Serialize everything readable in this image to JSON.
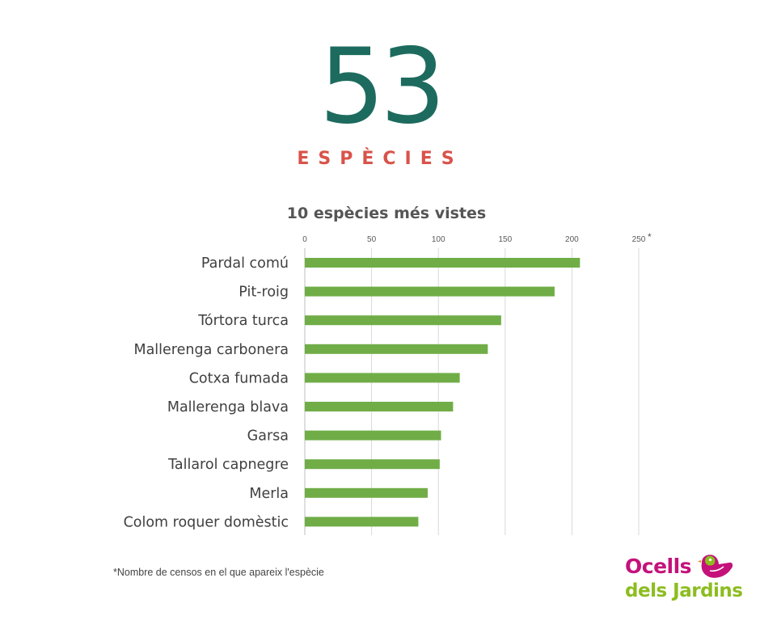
{
  "header": {
    "number": "53",
    "label": "ESPÈCIES"
  },
  "chart_data": {
    "type": "bar",
    "orientation": "horizontal",
    "title": "10 espècies més vistes",
    "categories": [
      "Pardal comú",
      "Pit-roig",
      "Tórtora turca",
      "Mallerenga carbonera",
      "Cotxa fumada",
      "Mallerenga blava",
      "Garsa",
      "Tallarol capnegre",
      "Merla",
      "Colom roquer domèstic"
    ],
    "values": [
      206,
      187,
      147,
      137,
      116,
      111,
      102,
      101,
      92,
      85
    ],
    "xlim": [
      0,
      250
    ],
    "xticks": [
      0,
      50,
      100,
      150,
      200,
      250
    ],
    "axis_note": "*",
    "grid": true,
    "bar_color": "#70ad47"
  },
  "footnote": "*Nombre de censos en el que apareix l'espècie",
  "logo": {
    "line1": "Ocells",
    "line2": "dels Jardins"
  }
}
